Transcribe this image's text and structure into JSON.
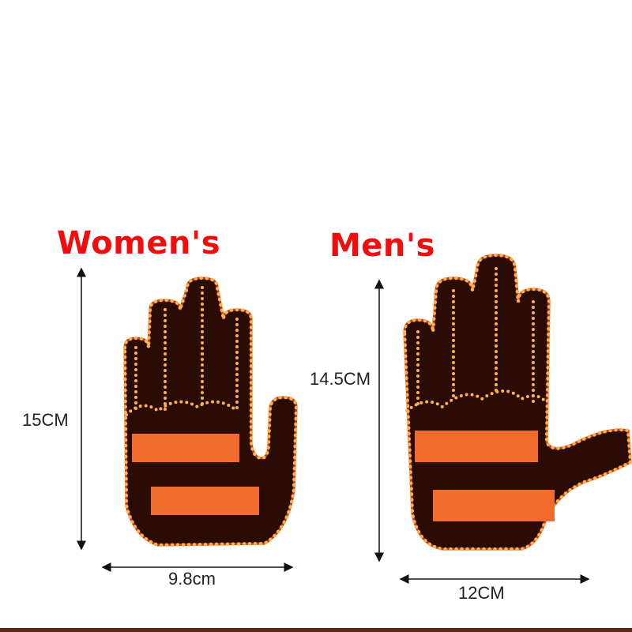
{
  "labels": {
    "women": "Women's",
    "men": "Men's"
  },
  "dimensions": {
    "women_height": "15CM",
    "women_width": "9.8cm",
    "men_height": "14.5CM",
    "men_width": "12CM"
  },
  "colors": {
    "title": "#f20d0d",
    "hand_fill": "#2a0c05",
    "led": "#ffb14a",
    "panel": "#f06b2c"
  }
}
